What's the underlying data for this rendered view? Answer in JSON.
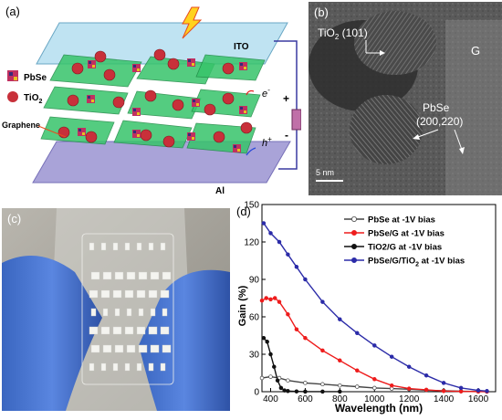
{
  "panel_a": {
    "label": "(a)",
    "legend": {
      "pbse": "PbSe",
      "tio2": "TiO",
      "tio2_sub": "2"
    },
    "graphene_label": "Graphene",
    "ito_label": "ITO",
    "al_label": "Al",
    "electron_label": "e",
    "electron_sup": "-",
    "hole_label": "h",
    "hole_sup": "+",
    "plus": "+",
    "minus": "-"
  },
  "panel_b": {
    "label": "(b)",
    "tio2_label": "TiO",
    "tio2_sub": "2",
    "tio2_plane": " (101)",
    "g_label": "G",
    "pbse_label": "PbSe",
    "pbse_plane": "(200,220)",
    "scale_label": "5 nm"
  },
  "panel_c": {
    "label": "(c)"
  },
  "panel_d": {
    "label": "(d)"
  },
  "colors": {
    "pbse": "#444444",
    "pbse_g": "#ee1c1c",
    "tio2_g": "#111111",
    "pbse_g_tio2": "#2b2ba8"
  },
  "chart_data": {
    "type": "line",
    "xlabel": "Wavelength (nm)",
    "ylabel": "Gain (%)",
    "xlim": [
      350,
      1700
    ],
    "ylim": [
      0,
      150
    ],
    "xticks": [
      400,
      600,
      800,
      1000,
      1200,
      1400,
      1600
    ],
    "yticks": [
      0,
      30,
      60,
      90,
      120,
      150
    ],
    "legend_position": "top-right",
    "series": [
      {
        "name": "PbSe at -1V bias",
        "marker": "open-circle",
        "x": [
          350,
          400,
          450,
          500,
          600,
          700,
          800,
          900,
          1000,
          1100,
          1200,
          1300,
          1400,
          1500,
          1600,
          1650
        ],
        "values": [
          11,
          12,
          11,
          9,
          7,
          6,
          5,
          4,
          3,
          2.5,
          2,
          1.2,
          0.8,
          0.4,
          0.2,
          0.1
        ]
      },
      {
        "name": "PbSe/G at -1V bias",
        "marker": "filled-circle",
        "x": [
          350,
          375,
          400,
          425,
          450,
          500,
          550,
          600,
          700,
          800,
          900,
          1000,
          1100,
          1200,
          1300,
          1400,
          1500,
          1600,
          1650
        ],
        "values": [
          73,
          75,
          74,
          75,
          72,
          62,
          50,
          43,
          33,
          25,
          17,
          10,
          5,
          2.5,
          1.5,
          0.5,
          0.2,
          0.1,
          0.1
        ]
      },
      {
        "name": "TiO2/G at -1V bias",
        "name_main": "TiO2/G at -1V bias",
        "marker": "filled-circle",
        "x": [
          360,
          380,
          400,
          420,
          440,
          460,
          480,
          500,
          550,
          600,
          700,
          800
        ],
        "values": [
          43,
          40,
          30,
          20,
          9,
          3,
          1,
          0.5,
          0.2,
          0.1,
          0.1,
          0.1
        ]
      },
      {
        "name": "PbSe/G/TiO2 at -1V bias",
        "name_main": "PbSe/G/TiO",
        "name_sub": "2",
        "name_tail": " at -1V bias",
        "marker": "filled-circle",
        "x": [
          360,
          400,
          450,
          500,
          550,
          600,
          700,
          800,
          900,
          1000,
          1100,
          1200,
          1300,
          1400,
          1500,
          1600,
          1650
        ],
        "values": [
          135,
          127,
          120,
          110,
          100,
          90,
          72,
          58,
          47,
          37,
          28,
          20,
          13,
          7,
          3,
          1,
          0.5
        ]
      }
    ]
  }
}
